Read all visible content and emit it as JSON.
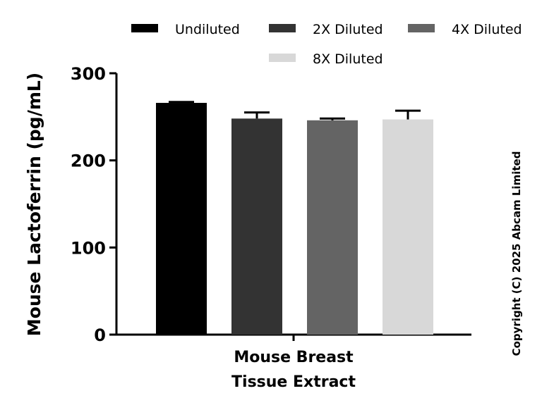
{
  "chart_data": {
    "type": "bar",
    "title": "",
    "ylabel": "Mouse Lactoferrin (pg/mL)",
    "xlabel": "",
    "category_label_lines": [
      "Mouse Breast",
      "Tissue Extract"
    ],
    "ylim": [
      0,
      300
    ],
    "yticks": [
      0,
      100,
      200,
      300
    ],
    "grid": false,
    "legend_position": "top",
    "series": [
      {
        "name": "Undiluted",
        "value": 266,
        "error": 1,
        "color": "#000000"
      },
      {
        "name": "2X Diluted",
        "value": 248,
        "error": 7,
        "color": "#333333"
      },
      {
        "name": "4X Diluted",
        "value": 246,
        "error": 2,
        "color": "#646464"
      },
      {
        "name": "8X Diluted",
        "value": 247,
        "error": 10,
        "color": "#d8d8d8"
      }
    ]
  },
  "copyright": "Copyright (C) 2025 Abcam Limited"
}
